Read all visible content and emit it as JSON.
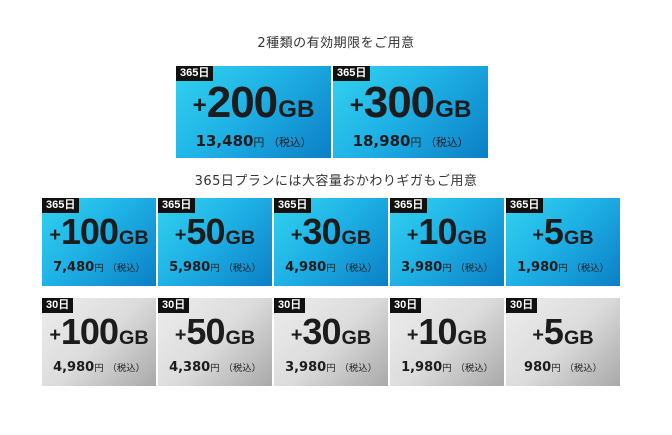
{
  "heading_top": "2種類の有効期限をご用意",
  "heading_mid": "365日プランには大容量おかわりギガもご用意",
  "big_cards": [
    {
      "tag": "365日",
      "plus": "+",
      "amount": "200",
      "unit": "GB",
      "price": "13,480",
      "yen": "円",
      "tax": "（税込）"
    },
    {
      "tag": "365日",
      "plus": "+",
      "amount": "300",
      "unit": "GB",
      "price": "18,980",
      "yen": "円",
      "tax": "（税込）"
    }
  ],
  "row_365": [
    {
      "tag": "365日",
      "plus": "+",
      "amount": "100",
      "unit": "GB",
      "price": "7,480",
      "yen": "円",
      "tax": "（税込）"
    },
    {
      "tag": "365日",
      "plus": "+",
      "amount": "50",
      "unit": "GB",
      "price": "5,980",
      "yen": "円",
      "tax": "（税込）"
    },
    {
      "tag": "365日",
      "plus": "+",
      "amount": "30",
      "unit": "GB",
      "price": "4,980",
      "yen": "円",
      "tax": "（税込）"
    },
    {
      "tag": "365日",
      "plus": "+",
      "amount": "10",
      "unit": "GB",
      "price": "3,980",
      "yen": "円",
      "tax": "（税込）"
    },
    {
      "tag": "365日",
      "plus": "+",
      "amount": "5",
      "unit": "GB",
      "price": "1,980",
      "yen": "円",
      "tax": "（税込）"
    }
  ],
  "row_30": [
    {
      "tag": "30日",
      "plus": "+",
      "amount": "100",
      "unit": "GB",
      "price": "4,980",
      "yen": "円",
      "tax": "（税込）"
    },
    {
      "tag": "30日",
      "plus": "+",
      "amount": "50",
      "unit": "GB",
      "price": "4,380",
      "yen": "円",
      "tax": "（税込）"
    },
    {
      "tag": "30日",
      "plus": "+",
      "amount": "30",
      "unit": "GB",
      "price": "3,980",
      "yen": "円",
      "tax": "（税込）"
    },
    {
      "tag": "30日",
      "plus": "+",
      "amount": "10",
      "unit": "GB",
      "price": "1,980",
      "yen": "円",
      "tax": "（税込）"
    },
    {
      "tag": "30日",
      "plus": "+",
      "amount": "5",
      "unit": "GB",
      "price": "980",
      "yen": "円",
      "tax": "（税込）"
    }
  ],
  "colors": {
    "card_365_start": "#33d3ef",
    "card_365_end": "#0b7fc6",
    "card_30_start": "#ededed",
    "card_30_end": "#a9a9a9",
    "tag_bg": "#111111"
  }
}
